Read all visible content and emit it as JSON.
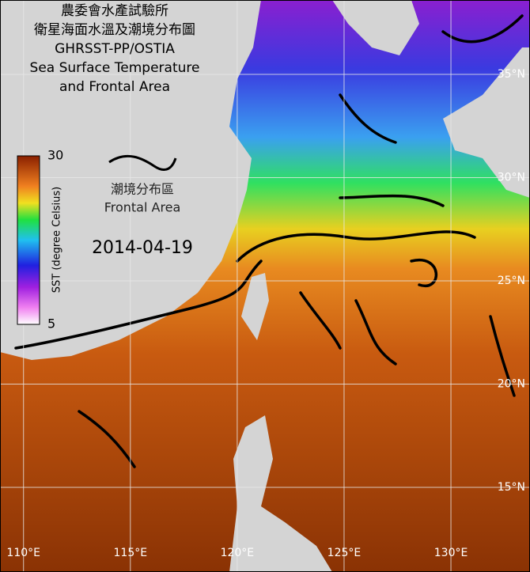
{
  "map": {
    "title_lines": [
      "農委會水產試驗所",
      "衛星海面水溫及潮境分布圖",
      "GHRSST-PP/OSTIA",
      "Sea Surface Temperature",
      "and Frontal Area"
    ],
    "colorbar": {
      "label": "SST (degree Celsius)",
      "range": [
        5,
        30
      ],
      "ticks": [
        5,
        30
      ]
    },
    "legend": {
      "label_zh": "潮境分布區",
      "label_en": "Frontal Area"
    },
    "date": "2014-04-19",
    "lon_range": [
      108.9,
      133.7
    ],
    "lat_range": [
      38.6,
      10.9
    ],
    "lat_lines": [
      {
        "value": 35,
        "label": "35°N"
      },
      {
        "value": 30,
        "label": "30°N"
      },
      {
        "value": 25,
        "label": "25°N"
      },
      {
        "value": 20,
        "label": "20°N"
      },
      {
        "value": 15,
        "label": "15°N"
      }
    ],
    "lon_lines": [
      {
        "value": 110,
        "label": "110°E"
      },
      {
        "value": 115,
        "label": "115°E"
      },
      {
        "value": 120,
        "label": "120°E"
      },
      {
        "value": 125,
        "label": "125°E"
      },
      {
        "value": 130,
        "label": "130°E"
      }
    ]
  }
}
